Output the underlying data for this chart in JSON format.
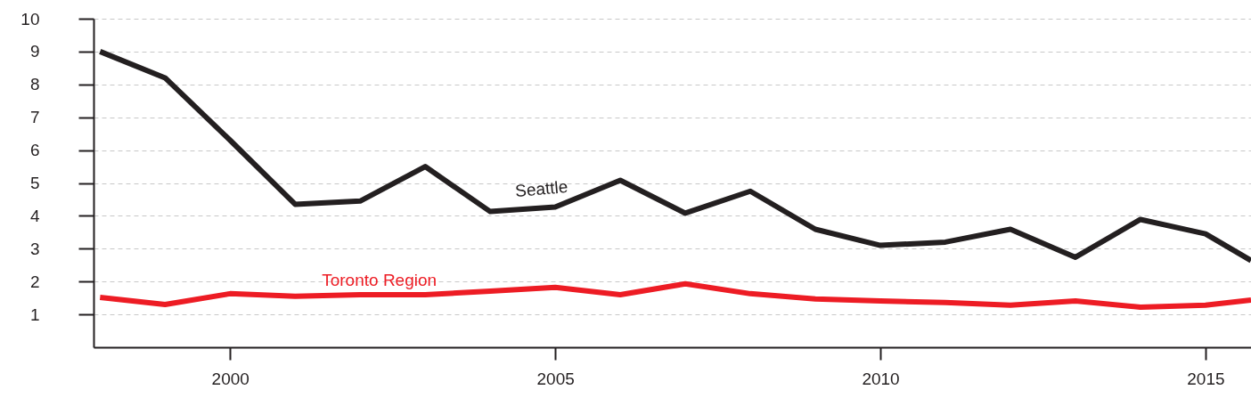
{
  "chart_data": {
    "type": "line",
    "x": [
      1998,
      1999,
      2000,
      2001,
      2002,
      2003,
      2004,
      2005,
      2006,
      2007,
      2008,
      2009,
      2010,
      2011,
      2012,
      2013,
      2014,
      2015,
      2015.7
    ],
    "series": [
      {
        "name": "Seattle",
        "color": "#231f20",
        "values": [
          9.0,
          8.2,
          6.3,
          4.35,
          4.45,
          5.5,
          4.13,
          4.27,
          5.08,
          4.08,
          4.75,
          3.59,
          3.1,
          3.2,
          3.59,
          2.74,
          3.89,
          3.45,
          2.64
        ]
      },
      {
        "name": "Toronto Region",
        "color": "#ed1c24",
        "values": [
          1.52,
          1.3,
          1.63,
          1.55,
          1.6,
          1.6,
          1.71,
          1.82,
          1.6,
          1.93,
          1.63,
          1.47,
          1.41,
          1.36,
          1.28,
          1.41,
          1.22,
          1.28,
          1.44
        ]
      }
    ],
    "xlim": [
      1997.9,
      2015.7
    ],
    "xticks": [
      2000,
      2005,
      2010,
      2015
    ],
    "ylim": [
      0,
      10
    ],
    "yticks": [
      1,
      2,
      3,
      4,
      5,
      6,
      7,
      8,
      9,
      10
    ],
    "grid": "y",
    "legend": false,
    "marker": "none",
    "line_style": "solid"
  }
}
